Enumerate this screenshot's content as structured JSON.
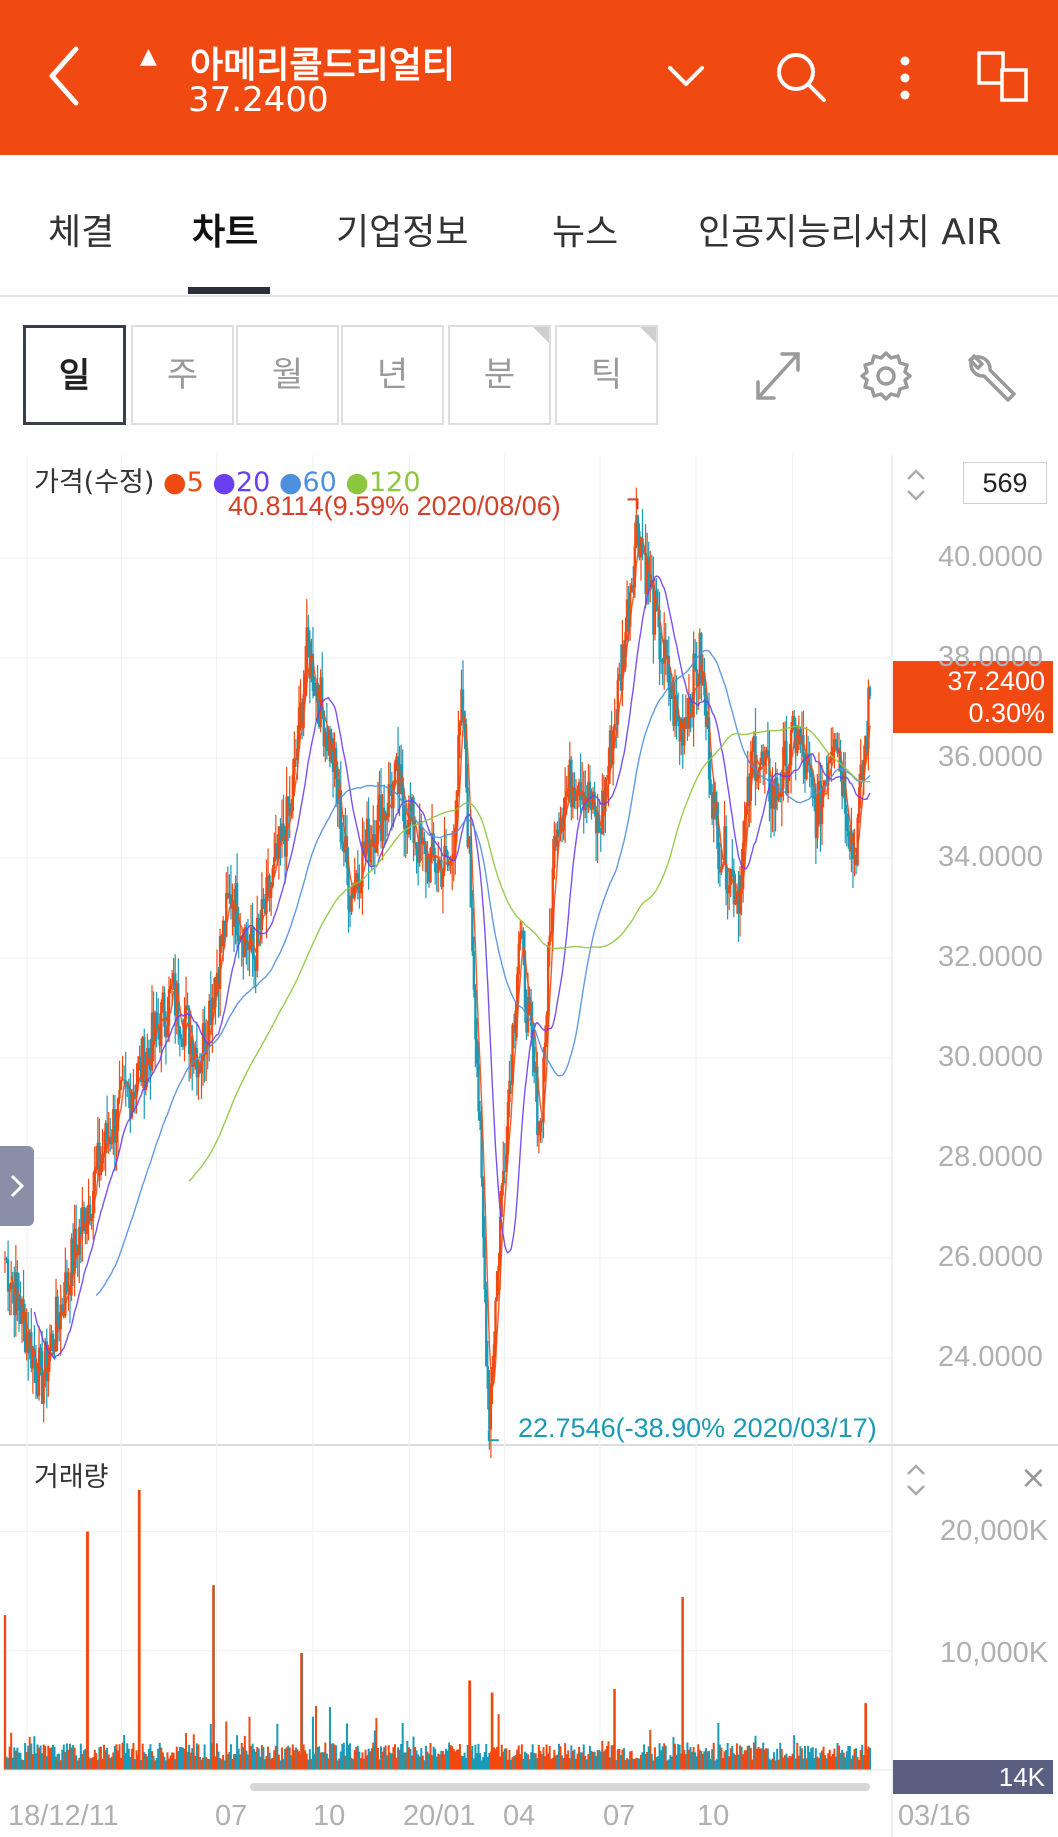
{
  "header": {
    "stock_name": "아메리콜드리얼티",
    "price": "37.2400",
    "up_marker": "▲",
    "icons": [
      "back-chevron-icon",
      "chevron-down-icon",
      "search-icon",
      "more-vertical-icon",
      "split-screen-icon"
    ]
  },
  "tabs": [
    "체결",
    "차트",
    "기업정보",
    "뉴스",
    "인공지능리서치 AIR"
  ],
  "active_tab": "차트",
  "periods": [
    "일",
    "주",
    "월",
    "년",
    "분",
    "틱"
  ],
  "active_period": "일",
  "toolbar_icons": [
    "expand-icon",
    "settings-gear-icon",
    "wrench-icon"
  ],
  "price_panel": {
    "label": "가격(수정)",
    "ma_legend": [
      {
        "label": "5",
        "color": "#f04a12"
      },
      {
        "label": "20",
        "color": "#6a3ff0"
      },
      {
        "label": "60",
        "color": "#4f8fe0"
      },
      {
        "label": "120",
        "color": "#8dc63f"
      }
    ],
    "count_value": "569",
    "high_annotation": "40.8114(9.59% 2020/08/06)",
    "low_annotation": "22.7546(-38.90% 2020/03/17)",
    "current_price": "37.2400",
    "current_change": "0.30%",
    "y_ticks": [
      "40.0000",
      "38.0000",
      "36.0000",
      "34.0000",
      "32.0000",
      "30.0000",
      "28.0000",
      "26.0000",
      "24.0000"
    ]
  },
  "volume_panel": {
    "label": "거래량",
    "y_ticks": [
      "20,000K",
      "10,000K"
    ],
    "current_volume": "14K",
    "close_icon": "×"
  },
  "x_ticks": [
    "18/12/11",
    "07",
    "10",
    "20/01",
    "04",
    "07",
    "10",
    "03/16"
  ],
  "colors": {
    "brand": "#f04a12",
    "up": "#f04a12",
    "down": "#1b9ab5"
  },
  "chart_data": {
    "type": "candlestick",
    "title": "가격(수정)",
    "x_range": [
      "2018/12/11",
      "2021/03/16"
    ],
    "y_range": [
      23,
      41
    ],
    "grid": true,
    "high": {
      "value": 40.8114,
      "change_pct": 9.59,
      "date": "2020/08/06"
    },
    "low": {
      "value": 22.7546,
      "change_pct": -38.9,
      "date": "2020/03/17"
    },
    "last": 37.24,
    "close_series": {
      "x": [
        "2018/12/11",
        "2019/01/15",
        "2019/02/20",
        "2019/03/20",
        "2019/04/20",
        "2019/05/20",
        "2019/06/15",
        "2019/07/15",
        "2019/08/05",
        "2019/09/10",
        "2019/09/26",
        "2019/10/20",
        "2019/11/05",
        "2019/11/25",
        "2019/12/20",
        "2020/01/15",
        "2020/02/10",
        "2020/02/21",
        "2020/03/05",
        "2020/03/17",
        "2020/03/30",
        "2020/04/15",
        "2020/05/05",
        "2020/05/20",
        "2020/06/10",
        "2020/06/30",
        "2020/07/20",
        "2020/08/06",
        "2020/08/25",
        "2020/09/15",
        "2020/10/05",
        "2020/10/20",
        "2020/11/10",
        "2020/11/25",
        "2020/12/15",
        "2021/01/05",
        "2021/01/25",
        "2021/02/10",
        "2021/03/01",
        "2021/03/16"
      ],
      "values": [
        26.0,
        23.5,
        26.5,
        28.5,
        29.8,
        31.3,
        30.0,
        33.3,
        32.0,
        35.0,
        38.2,
        36.0,
        33.3,
        34.5,
        35.5,
        34.0,
        33.8,
        37.2,
        30.5,
        22.8,
        27.5,
        32.5,
        28.5,
        34.8,
        35.8,
        34.5,
        37.5,
        40.8,
        38.5,
        36.5,
        38.0,
        34.5,
        33.3,
        36.2,
        35.2,
        36.5,
        34.8,
        36.8,
        34.0,
        37.24
      ]
    },
    "moving_averages": [
      "5",
      "20",
      "60",
      "120"
    ],
    "volume": {
      "unit": "K",
      "y_range": [
        0,
        25000
      ],
      "last": 14,
      "peaks": [
        {
          "date": "2018/12/11",
          "value": 13000
        },
        {
          "date": "2019/02/28",
          "value": 20000
        },
        {
          "date": "2019/04/18",
          "value": 23500
        },
        {
          "date": "2019/06/28",
          "value": 15500
        },
        {
          "date": "2019/09/20",
          "value": 9800
        },
        {
          "date": "2020/02/28",
          "value": 7500
        },
        {
          "date": "2020/03/20",
          "value": 6500
        },
        {
          "date": "2020/07/15",
          "value": 6800
        },
        {
          "date": "2020/09/18",
          "value": 14500
        },
        {
          "date": "2021/03/12",
          "value": 5600
        }
      ]
    }
  }
}
